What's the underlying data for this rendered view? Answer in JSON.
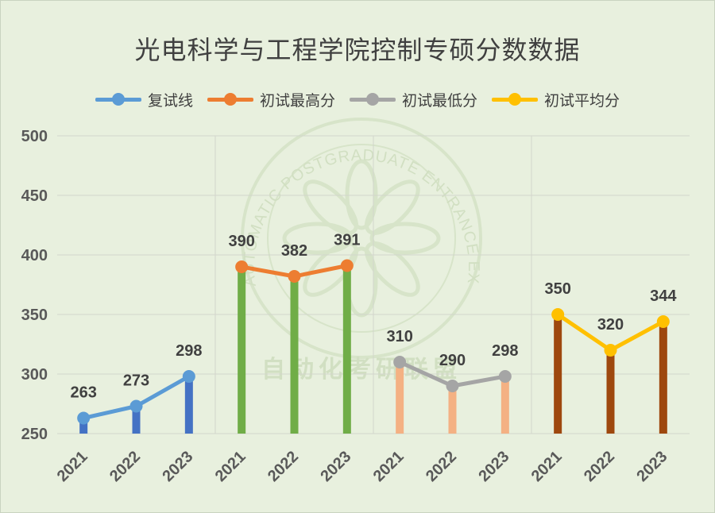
{
  "title": "光电科学与工程学院控制专硕分数数据",
  "watermark": {
    "text": "AUTOMATIC POSTGRADUATE ENTRANCE EXAMINATION ALLIANCE",
    "cn": "自动化考研联盟"
  },
  "chart_data": {
    "type": "bar",
    "ylim": [
      250,
      500
    ],
    "yticks": [
      250,
      300,
      350,
      400,
      450,
      500
    ],
    "grid": true,
    "legend_position": "top",
    "groups": [
      {
        "name": "复试线",
        "color": "#5b9bd5",
        "bar_color": "#4472c4",
        "x": [
          "2021",
          "2022",
          "2023"
        ],
        "values": [
          263,
          273,
          298
        ]
      },
      {
        "name": "初试最高分",
        "color": "#ed7d31",
        "bar_color": "#70ad47",
        "x": [
          "2021",
          "2022",
          "2023"
        ],
        "values": [
          390,
          382,
          391
        ]
      },
      {
        "name": "初试最低分",
        "color": "#a5a5a5",
        "bar_color": "#f4b183",
        "x": [
          "2021",
          "2022",
          "2023"
        ],
        "values": [
          310,
          290,
          298
        ]
      },
      {
        "name": "初试平均分",
        "color": "#ffc000",
        "bar_color": "#9e480e",
        "x": [
          "2021",
          "2022",
          "2023"
        ],
        "values": [
          350,
          320,
          344
        ]
      }
    ]
  }
}
